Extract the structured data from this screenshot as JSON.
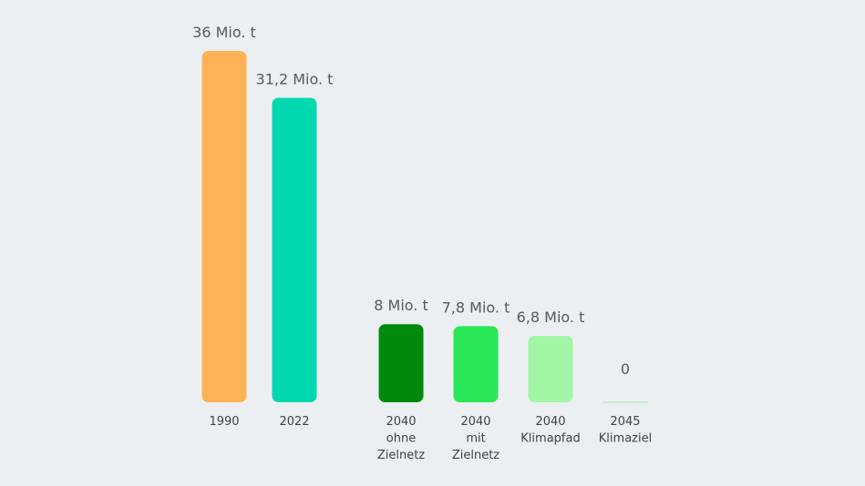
{
  "chart_data": {
    "type": "bar",
    "categories": [
      [
        "1990"
      ],
      [
        "2022"
      ],
      [
        "2040",
        "ohne",
        "Zielnetz"
      ],
      [
        "2040",
        "mit",
        "Zielnetz"
      ],
      [
        "2040",
        "Klimapfad"
      ],
      [
        "2045",
        "Klimaziel"
      ]
    ],
    "values": [
      36,
      31.2,
      8,
      7.8,
      6.8,
      0
    ],
    "value_labels": [
      "36 Mio. t",
      "31,2 Mio. t",
      "8 Mio. t",
      "7,8 Mio. t",
      "6,8 Mio. t",
      "0"
    ],
    "colors": [
      "#ffb155",
      "#00d9b0",
      "#008a0c",
      "#29e656",
      "#a1f6a6",
      "#b8ecc0"
    ],
    "ylim": [
      0,
      36
    ],
    "grid": false,
    "legend": "none"
  }
}
